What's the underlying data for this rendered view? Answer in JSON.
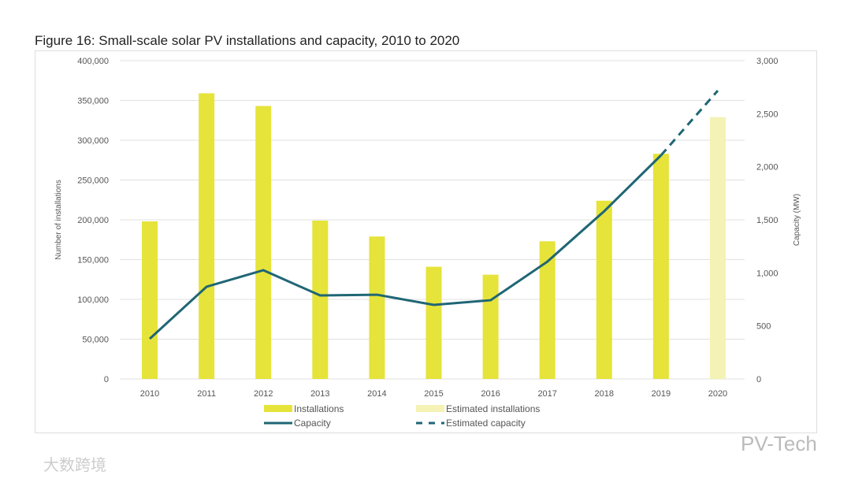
{
  "chart_data": {
    "type": "bar",
    "title": "Figure 16: Small-scale solar PV installations and capacity, 2010 to 2020",
    "categories": [
      "2010",
      "2011",
      "2012",
      "2013",
      "2014",
      "2015",
      "2016",
      "2017",
      "2018",
      "2019",
      "2020"
    ],
    "ylabel": "Number of installations",
    "y2label": "Capacity (MW)",
    "ylim": [
      0,
      400000
    ],
    "y2lim": [
      0,
      3000
    ],
    "yticks": [
      "0",
      "50,000",
      "100,000",
      "150,000",
      "200,000",
      "250,000",
      "300,000",
      "350,000",
      "400,000"
    ],
    "y2ticks": [
      "0",
      "500",
      "1,000",
      "1,500",
      "2,000",
      "2,500",
      "3,000"
    ],
    "grid": true,
    "legend_position": "bottom",
    "series": [
      {
        "name": "Installations",
        "type": "bar",
        "values": [
          198000,
          359000,
          343000,
          199000,
          179000,
          141000,
          131000,
          173000,
          224000,
          283000,
          null
        ],
        "color": "#e6e33a"
      },
      {
        "name": "Estimated installations",
        "type": "bar",
        "values": [
          null,
          null,
          null,
          null,
          null,
          null,
          null,
          null,
          null,
          null,
          329000
        ],
        "color": "#f4f2b4"
      },
      {
        "name": "Capacity",
        "type": "line",
        "axis": "right",
        "values": [
          379,
          869,
          1025,
          787,
          794,
          698,
          742,
          1106,
          1581,
          2108,
          null
        ],
        "color": "#1f6675"
      },
      {
        "name": "Estimated capacity",
        "type": "line",
        "dashed": true,
        "axis": "right",
        "values": [
          null,
          null,
          null,
          null,
          null,
          null,
          null,
          null,
          null,
          2108,
          2718
        ],
        "color": "#1f6675"
      }
    ]
  },
  "watermarks": {
    "right": "PV-Tech",
    "left": "大数跨境"
  }
}
